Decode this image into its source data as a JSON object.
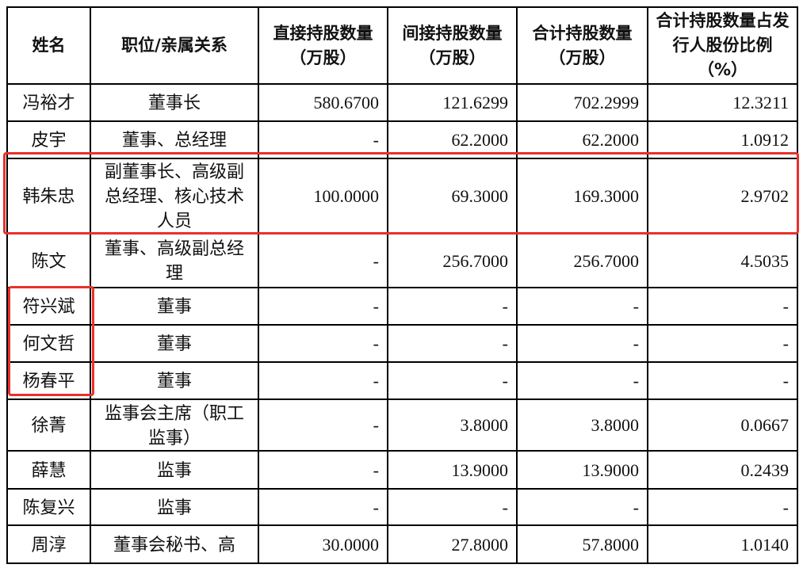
{
  "headers": [
    "姓名",
    "职位/亲属关系",
    "直接持股数量（万股）",
    "间接持股数量（万股）",
    "合计持股数量（万股）",
    "合计持股数量占发行人股份比例（%）"
  ],
  "rows": [
    {
      "name": "冯裕才",
      "position": "董事长",
      "direct": "580.6700",
      "indirect": "121.6299",
      "total": "702.2999",
      "ratio": "12.3211"
    },
    {
      "name": "皮宇",
      "position": "董事、总经理",
      "direct": "-",
      "indirect": "62.2000",
      "total": "62.2000",
      "ratio": "1.0912"
    },
    {
      "name": "韩朱忠",
      "position": "副董事长、高级副总经理、核心技术人员",
      "direct": "100.0000",
      "indirect": "69.3000",
      "total": "169.3000",
      "ratio": "2.9702"
    },
    {
      "name": "陈文",
      "position": "董事、高级副总经理",
      "direct": "-",
      "indirect": "256.7000",
      "total": "256.7000",
      "ratio": "4.5035"
    },
    {
      "name": "符兴斌",
      "position": "董事",
      "direct": "-",
      "indirect": "-",
      "total": "-",
      "ratio": "-"
    },
    {
      "name": "何文哲",
      "position": "董事",
      "direct": "-",
      "indirect": "-",
      "total": "-",
      "ratio": "-"
    },
    {
      "name": "杨春平",
      "position": "董事",
      "direct": "-",
      "indirect": "-",
      "total": "-",
      "ratio": "-"
    },
    {
      "name": "徐菁",
      "position": "监事会主席（职工监事）",
      "direct": "-",
      "indirect": "3.8000",
      "total": "3.8000",
      "ratio": "0.0667"
    },
    {
      "name": "薛慧",
      "position": "监事",
      "direct": "-",
      "indirect": "13.9000",
      "total": "13.9000",
      "ratio": "0.2439"
    },
    {
      "name": "陈复兴",
      "position": "监事",
      "direct": "-",
      "indirect": "-",
      "total": "-",
      "ratio": "-"
    },
    {
      "name": "周淳",
      "position": "董事会秘书、高",
      "direct": "30.0000",
      "indirect": "27.8000",
      "total": "57.8000",
      "ratio": "1.0140"
    }
  ],
  "highlight_color": "#e8312b"
}
